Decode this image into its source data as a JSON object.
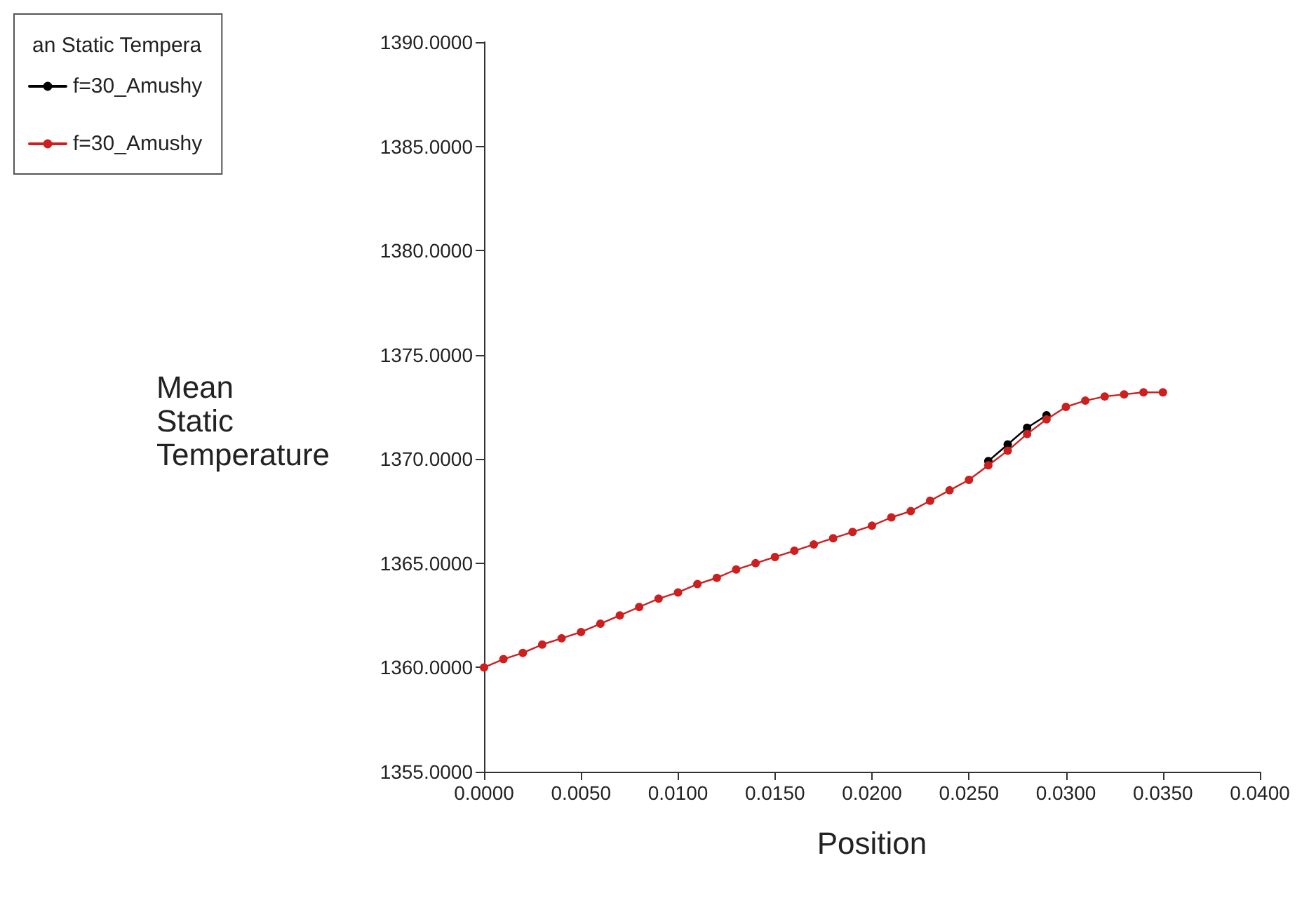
{
  "chart_data": {
    "type": "line",
    "xlabel": "Position",
    "ylabel": "Mean\nStatic\nTemperature",
    "legend_title": "an Static Tempera",
    "x": [
      0,
      0.001,
      0.002,
      0.003,
      0.004,
      0.005,
      0.006,
      0.007,
      0.008,
      0.009,
      0.01,
      0.011,
      0.012,
      0.013,
      0.014,
      0.015,
      0.016,
      0.017,
      0.018,
      0.019,
      0.02,
      0.021,
      0.022,
      0.023,
      0.024,
      0.025,
      0.026,
      0.027,
      0.028,
      0.029,
      0.03,
      0.031,
      0.032,
      0.033,
      0.034,
      0.035
    ],
    "series": [
      {
        "name": "f=30_Amushy",
        "color": "#000000",
        "values": [
          null,
          null,
          null,
          null,
          null,
          null,
          null,
          null,
          null,
          null,
          null,
          null,
          null,
          null,
          null,
          null,
          null,
          null,
          null,
          null,
          null,
          null,
          null,
          null,
          null,
          null,
          1369.9,
          1370.7,
          1371.5,
          1372.1,
          null,
          null,
          null,
          null,
          null,
          null
        ]
      },
      {
        "name": "f=30_Amushy",
        "color": "#cc1f1f",
        "values": [
          1360.0,
          1360.4,
          1360.7,
          1361.1,
          1361.4,
          1361.7,
          1362.1,
          1362.5,
          1362.9,
          1363.3,
          1363.6,
          1364.0,
          1364.3,
          1364.7,
          1365.0,
          1365.3,
          1365.6,
          1365.9,
          1366.2,
          1366.5,
          1366.8,
          1367.2,
          1367.5,
          1368.0,
          1368.5,
          1369.0,
          1369.7,
          1370.4,
          1371.2,
          1371.9,
          1372.5,
          1372.8,
          1373.0,
          1373.1,
          1373.2,
          1373.2
        ]
      }
    ],
    "xlim": [
      0,
      0.04
    ],
    "xticks": [
      {
        "value": 0,
        "label": "0.0000"
      },
      {
        "value": 0.005,
        "label": "0.0050"
      },
      {
        "value": 0.01,
        "label": "0.0100"
      },
      {
        "value": 0.015,
        "label": "0.0150"
      },
      {
        "value": 0.02,
        "label": "0.0200"
      },
      {
        "value": 0.025,
        "label": "0.0250"
      },
      {
        "value": 0.03,
        "label": "0.0300"
      },
      {
        "value": 0.035,
        "label": "0.0350"
      },
      {
        "value": 0.04,
        "label": "0.0400"
      }
    ],
    "ylim": [
      1355,
      1390
    ],
    "yticks": [
      {
        "value": 1355,
        "label": "1355.0000"
      },
      {
        "value": 1360,
        "label": "1360.0000"
      },
      {
        "value": 1365,
        "label": "1365.0000"
      },
      {
        "value": 1370,
        "label": "1370.0000"
      },
      {
        "value": 1375,
        "label": "1375.0000"
      },
      {
        "value": 1380,
        "label": "1380.0000"
      },
      {
        "value": 1385,
        "label": "1385.0000"
      },
      {
        "value": 1390,
        "label": "1390.0000"
      }
    ],
    "grid": false,
    "legend": "top left",
    "marker": "circle",
    "line_style": "solid"
  }
}
